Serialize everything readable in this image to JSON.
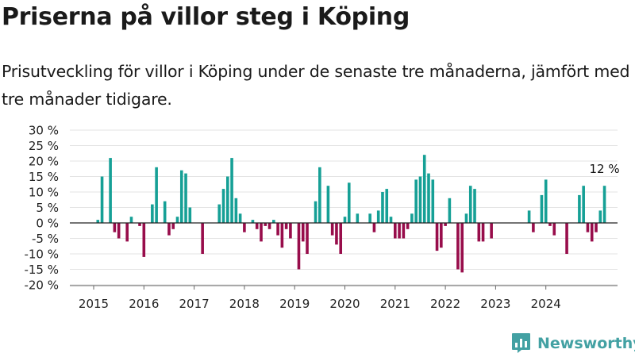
{
  "title": "Priserna på villor steg i Köping",
  "subtitle": "Prisutveckling för villor i Köping under de senaste tre månaderna, jämfört med tre månader tidigare.",
  "brand": "Newsworthy",
  "colors": {
    "positive": "#16a096",
    "negative": "#980d4b",
    "brand": "#43a1a3"
  },
  "chart_data": {
    "type": "bar",
    "start": "2015-01",
    "x_tick_labels": [
      "2015",
      "2016",
      "2017",
      "2018",
      "2019",
      "2020",
      "2021",
      "2022",
      "2023",
      "2024"
    ],
    "y_tick_labels": [
      "30 %",
      "25 %",
      "20 %",
      "15 %",
      "10 %",
      "5 %",
      "0 %",
      "-5 %",
      "-10 %",
      "-15 %",
      "-20 %"
    ],
    "ylim": [
      -20,
      30
    ],
    "grid": true,
    "annotation": "12 %",
    "values": [
      null,
      1,
      15,
      null,
      21,
      -3,
      -5,
      null,
      -6,
      2,
      null,
      -1,
      -11,
      null,
      6,
      18,
      null,
      7,
      -4,
      -2,
      2,
      17,
      16,
      5,
      null,
      null,
      -10,
      null,
      null,
      null,
      6,
      11,
      15,
      21,
      8,
      3,
      -3,
      0,
      1,
      -2,
      -6,
      -1,
      -2,
      1,
      -4,
      -8,
      -2,
      -5,
      0,
      -15,
      -6,
      -10,
      null,
      7,
      18,
      null,
      12,
      -4,
      -7,
      -10,
      2,
      13,
      null,
      3,
      null,
      null,
      3,
      -3,
      4,
      10,
      11,
      2,
      -5,
      -5,
      -5,
      -2,
      3,
      14,
      15,
      22,
      16,
      14,
      -9,
      -8,
      -1,
      8,
      null,
      -15,
      -16,
      3,
      12,
      11,
      -6,
      -6,
      null,
      -5,
      null,
      null,
      null,
      null,
      null,
      null,
      null,
      null,
      4,
      -3,
      null,
      9,
      14,
      -1,
      -4,
      null,
      null,
      -10,
      null,
      null,
      9,
      12,
      -3,
      -6,
      -3,
      4,
      12
    ]
  }
}
